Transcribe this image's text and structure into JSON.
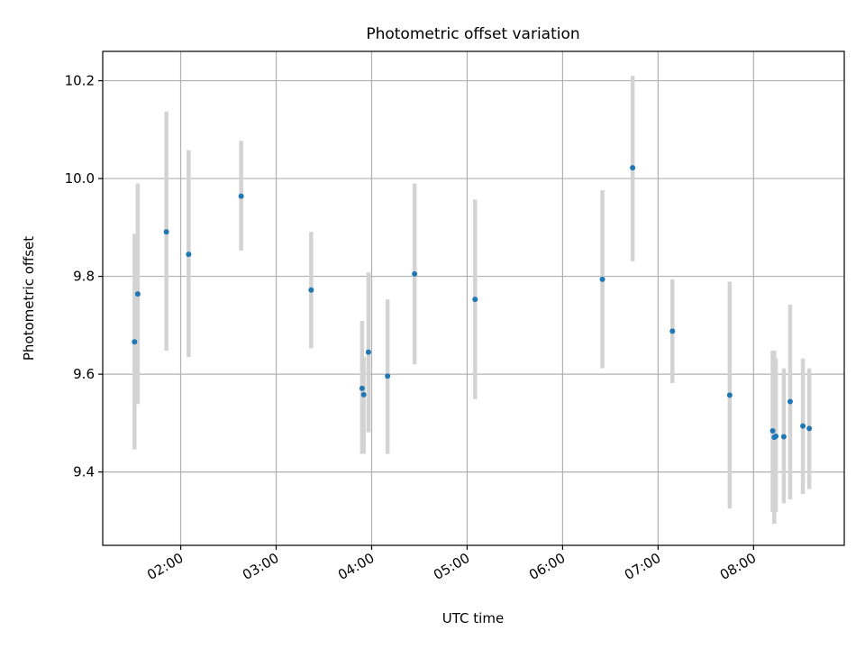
{
  "chart_data": {
    "type": "scatter",
    "title": "Photometric offset variation",
    "xlabel": "UTC time",
    "ylabel": "Photometric offset",
    "x_axis": {
      "kind": "time",
      "xlim": [
        "01:11",
        "08:57"
      ],
      "ticks": [
        "02:00",
        "03:00",
        "04:00",
        "05:00",
        "06:00",
        "07:00",
        "08:00"
      ]
    },
    "y_axis": {
      "ylim": [
        9.25,
        10.26
      ],
      "ticks": [
        "9.4",
        "9.6",
        "9.8",
        "10.0",
        "10.2"
      ]
    },
    "grid": true,
    "colors": {
      "marker": "#1f77b4",
      "errorbar": "#d3d3d3",
      "grid": "#b0b0b0",
      "axes": "#000000"
    },
    "series": [
      {
        "points": [
          {
            "x": "01:31",
            "y": 9.666,
            "err_low": 9.446,
            "err_high": 9.887
          },
          {
            "x": "01:33",
            "y": 9.764,
            "err_low": 9.539,
            "err_high": 9.99
          },
          {
            "x": "01:51",
            "y": 9.891,
            "err_low": 9.648,
            "err_high": 10.137
          },
          {
            "x": "02:05",
            "y": 9.845,
            "err_low": 9.635,
            "err_high": 10.058
          },
          {
            "x": "02:38",
            "y": 9.964,
            "err_low": 9.853,
            "err_high": 10.077
          },
          {
            "x": "03:22",
            "y": 9.772,
            "err_low": 9.653,
            "err_high": 9.891
          },
          {
            "x": "03:54",
            "y": 9.571,
            "err_low": 9.437,
            "err_high": 9.709
          },
          {
            "x": "03:55",
            "y": 9.558,
            "err_low": 9.437,
            "err_high": 9.635
          },
          {
            "x": "03:58",
            "y": 9.645,
            "err_low": 9.481,
            "err_high": 9.808
          },
          {
            "x": "04:10",
            "y": 9.596,
            "err_low": 9.437,
            "err_high": 9.753
          },
          {
            "x": "04:27",
            "y": 9.805,
            "err_low": 9.62,
            "err_high": 9.99
          },
          {
            "x": "05:05",
            "y": 9.753,
            "err_low": 9.549,
            "err_high": 9.957
          },
          {
            "x": "06:25",
            "y": 9.794,
            "err_low": 9.612,
            "err_high": 9.976
          },
          {
            "x": "06:44",
            "y": 10.022,
            "err_low": 9.831,
            "err_high": 10.21
          },
          {
            "x": "07:09",
            "y": 9.688,
            "err_low": 9.582,
            "err_high": 9.794
          },
          {
            "x": "07:45",
            "y": 9.557,
            "err_low": 9.325,
            "err_high": 9.789
          },
          {
            "x": "08:12",
            "y": 9.484,
            "err_low": 9.318,
            "err_high": 9.648
          },
          {
            "x": "08:13",
            "y": 9.471,
            "err_low": 9.294,
            "err_high": 9.648
          },
          {
            "x": "08:14",
            "y": 9.473,
            "err_low": 9.318,
            "err_high": 9.632
          },
          {
            "x": "08:19",
            "y": 9.472,
            "err_low": 9.336,
            "err_high": 9.612
          },
          {
            "x": "08:23",
            "y": 9.544,
            "err_low": 9.344,
            "err_high": 9.742
          },
          {
            "x": "08:31",
            "y": 9.494,
            "err_low": 9.355,
            "err_high": 9.632
          },
          {
            "x": "08:35",
            "y": 9.489,
            "err_low": 9.365,
            "err_high": 9.612
          }
        ]
      }
    ]
  }
}
